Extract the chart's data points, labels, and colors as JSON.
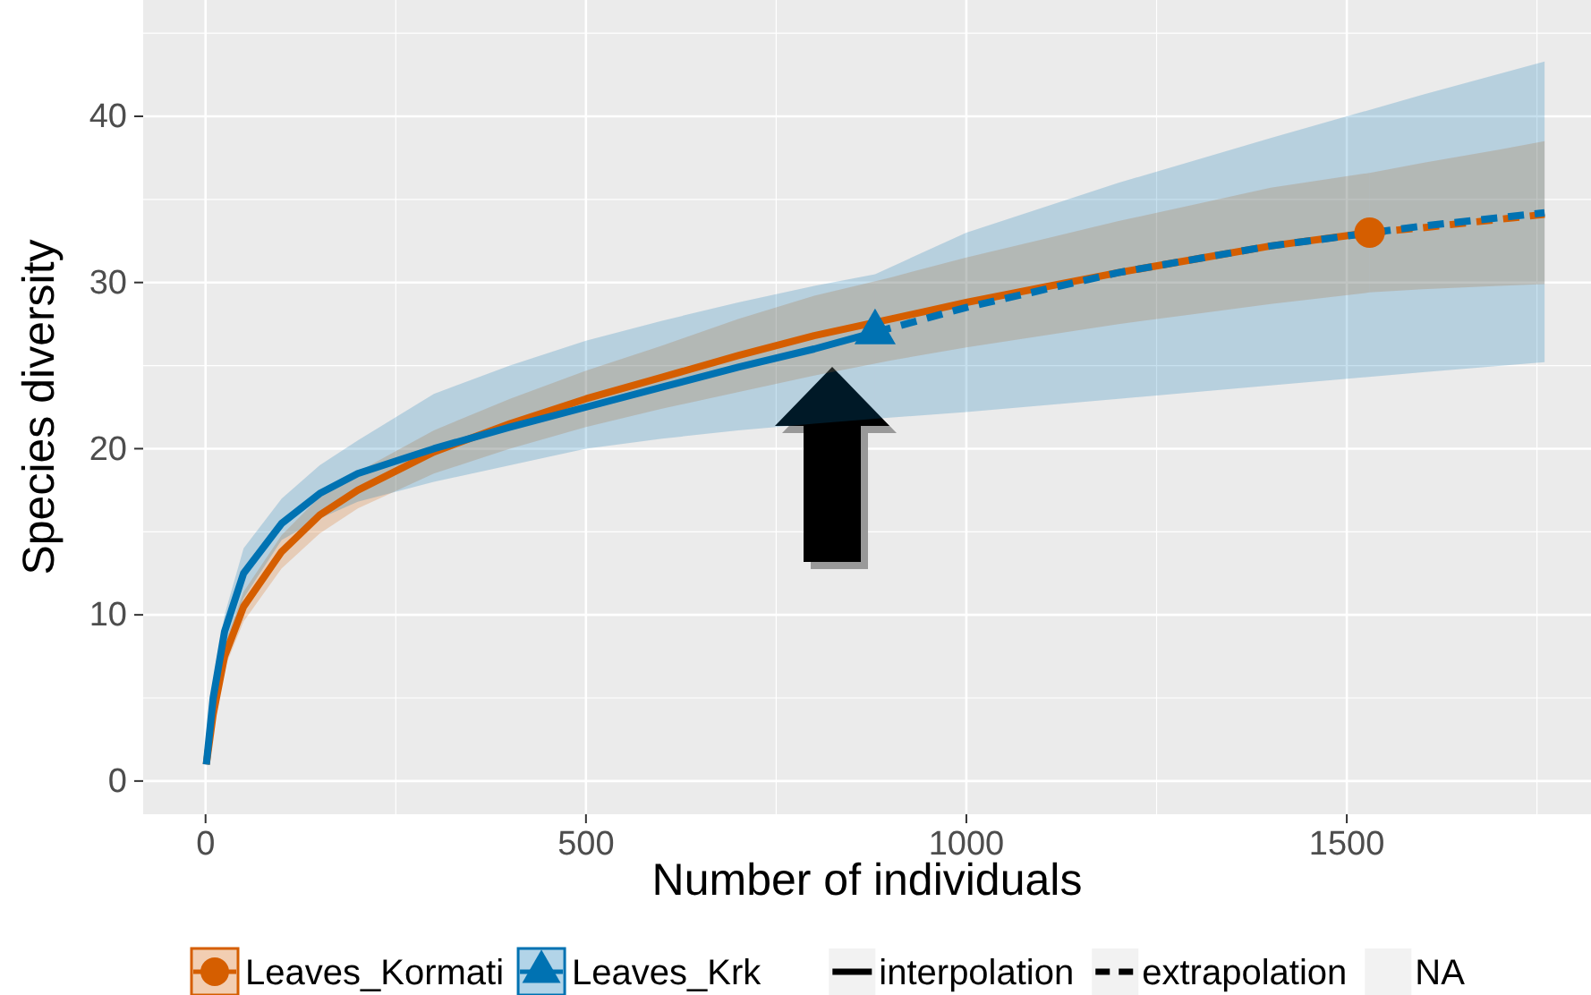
{
  "chart_data": {
    "type": "line",
    "xlabel": "Number of individuals",
    "ylabel": "Species diversity",
    "xlim": [
      -82,
      1821
    ],
    "ylim": [
      -2,
      47
    ],
    "xticks": [
      0,
      500,
      1000,
      1500
    ],
    "yticks": [
      0,
      10,
      20,
      30,
      40
    ],
    "grid": true,
    "legend": "bottom",
    "annotations": [
      "interpolation",
      "extrapolation",
      "NA"
    ],
    "series": [
      {
        "name": "Leaves_Kormati",
        "color": "#d55e00",
        "line_style": "solid",
        "x": [
          1,
          10,
          25,
          50,
          100,
          150,
          200,
          300,
          400,
          500,
          600,
          700,
          800,
          900,
          1000,
          1100,
          1200,
          1300,
          1400,
          1530
        ],
        "values": [
          1,
          4,
          7.5,
          10.5,
          13.8,
          16,
          17.5,
          19.8,
          21.5,
          23,
          24.3,
          25.6,
          26.8,
          27.8,
          28.8,
          29.7,
          30.6,
          31.4,
          32.2,
          33
        ],
        "lower": [
          1,
          3.6,
          6.8,
          9.6,
          12.8,
          14.9,
          16.4,
          18.5,
          20,
          21.3,
          22.4,
          23.4,
          24.4,
          25.3,
          26.1,
          26.8,
          27.5,
          28.1,
          28.7,
          29.4
        ],
        "upper": [
          1,
          4.4,
          8.2,
          11.4,
          14.8,
          17.1,
          18.6,
          21.1,
          23,
          24.7,
          26.2,
          27.8,
          29.2,
          30.3,
          31.5,
          32.6,
          33.7,
          34.7,
          35.7,
          36.6
        ]
      },
      {
        "color": "#d55e00",
        "line_style": "dashed",
        "x": [
          1530,
          1600,
          1700,
          1760
        ],
        "values": [
          33,
          33.3,
          33.8,
          34.1
        ],
        "lower": [
          29.4,
          29.6,
          29.8,
          29.9
        ],
        "upper": [
          36.6,
          37.2,
          38,
          38.5
        ]
      },
      {
        "type": "scatter",
        "color": "#d55e00",
        "marker": "circle",
        "x": [
          1530
        ],
        "values": [
          33
        ]
      },
      {
        "name": "Leaves_Krk",
        "color": "#0072b2",
        "line_style": "solid",
        "x": [
          1,
          10,
          25,
          50,
          100,
          150,
          200,
          300,
          400,
          500,
          600,
          700,
          800,
          880
        ],
        "values": [
          1,
          5,
          9,
          12.5,
          15.5,
          17.3,
          18.5,
          20,
          21.3,
          22.5,
          23.7,
          24.9,
          26,
          27
        ],
        "lower": [
          1,
          4.5,
          8,
          11,
          14.5,
          15.8,
          16.8,
          18,
          19,
          20,
          20.6,
          21.1,
          21.5,
          21.8
        ],
        "upper": [
          1,
          5.5,
          10,
          14,
          17,
          19,
          20.5,
          23.3,
          25,
          26.5,
          27.7,
          28.8,
          29.8,
          30.5
        ]
      },
      {
        "color": "#0072b2",
        "line_style": "dashed",
        "x": [
          880,
          1000,
          1200,
          1400,
          1600,
          1760
        ],
        "values": [
          27,
          28.5,
          30.6,
          32.2,
          33.4,
          34.2
        ],
        "lower": [
          21.8,
          22.2,
          23,
          23.8,
          24.6,
          25.2
        ],
        "upper": [
          30.5,
          33,
          36,
          38.7,
          41.3,
          43.3
        ]
      },
      {
        "type": "scatter",
        "color": "#0072b2",
        "marker": "triangle",
        "x": [
          880
        ],
        "values": [
          27
        ]
      }
    ]
  }
}
